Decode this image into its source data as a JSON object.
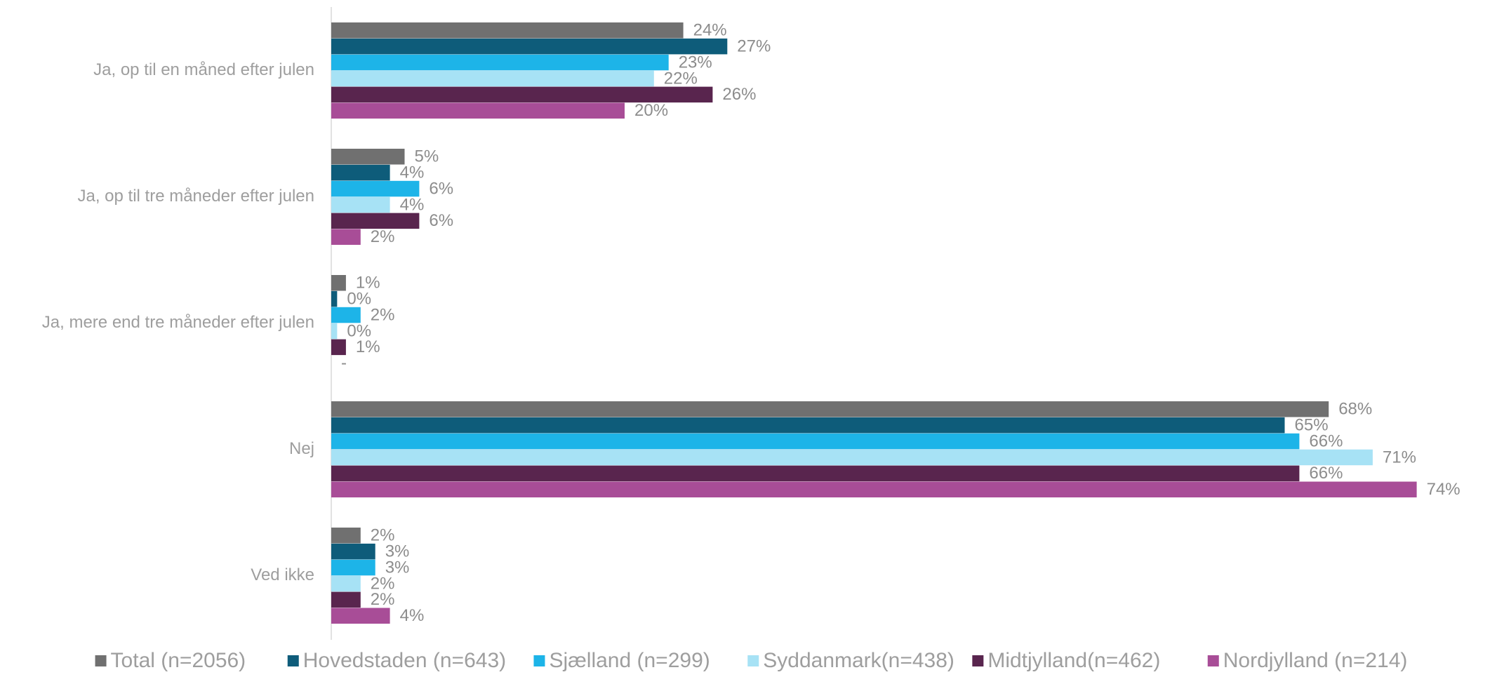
{
  "chart_data": {
    "type": "bar",
    "orientation": "horizontal",
    "categories": [
      "Ja, op til en måned efter julen",
      "Ja, op til tre måneder efter julen",
      "Ja, mere end tre måneder efter julen",
      "Nej",
      "Ved ikke"
    ],
    "series": [
      {
        "name": "Total (n=2056)",
        "color": "#707070",
        "values": [
          24,
          5,
          1,
          68,
          2
        ],
        "labels": [
          "24%",
          "5%",
          "1%",
          "68%",
          "2%"
        ]
      },
      {
        "name": "Hovedstaden (n=643)",
        "color": "#0e5c7a",
        "values": [
          27,
          4,
          0.4,
          65,
          3
        ],
        "labels": [
          "27%",
          "4%",
          "0%",
          "65%",
          "3%"
        ]
      },
      {
        "name": "Sjælland (n=299)",
        "color": "#1db4e8",
        "values": [
          23,
          6,
          2,
          66,
          3
        ],
        "labels": [
          "23%",
          "6%",
          "2%",
          "66%",
          "3%"
        ]
      },
      {
        "name": "Syddanmark(n=438)",
        "color": "#a7e2f5",
        "values": [
          22,
          4,
          0.4,
          71,
          2
        ],
        "labels": [
          "22%",
          "4%",
          "0%",
          "71%",
          "2%"
        ]
      },
      {
        "name": "Midtjylland(n=462)",
        "color": "#59254e",
        "values": [
          26,
          6,
          1,
          66,
          2
        ],
        "labels": [
          "26%",
          "6%",
          "1%",
          "66%",
          "2%"
        ]
      },
      {
        "name": "Nordjylland (n=214)",
        "color": "#a84d97",
        "values": [
          20,
          2,
          0,
          74,
          4
        ],
        "labels": [
          "20%",
          "2%",
          "-",
          "74%",
          "4%"
        ]
      }
    ],
    "legend_position": "bottom",
    "grid": false
  }
}
